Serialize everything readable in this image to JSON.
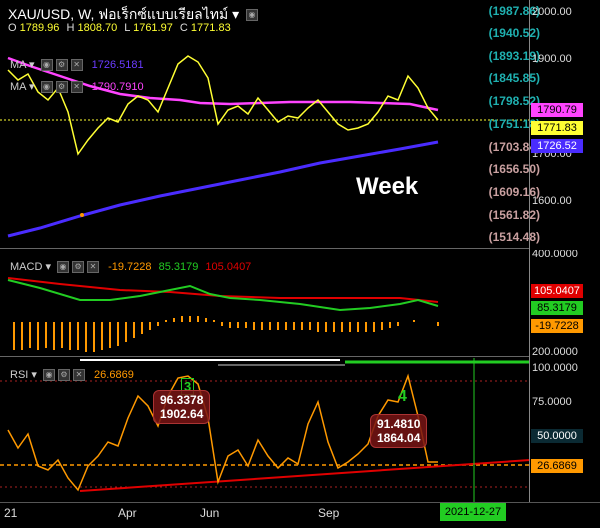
{
  "header": {
    "title": "XAU/USD, W, ฟอเร็กซ์แบบเรียลไทม์ ▾",
    "ohlc": [
      {
        "key": "O",
        "value": "1789.96"
      },
      {
        "key": "H",
        "value": "1808.70"
      },
      {
        "key": "L",
        "value": "1761.97"
      },
      {
        "key": "C",
        "value": "1771.83"
      }
    ],
    "ma1": {
      "label": "MA ▾",
      "value": "1726.5181",
      "color": "#6b3cff"
    },
    "ma2": {
      "label": "MA ▾",
      "value": "1790.7910",
      "color": "#ff44ff"
    }
  },
  "scale_labels": [
    "(1987.86)",
    "(1940.52)",
    "(1893.19)",
    "(1845.85)",
    "(1798.52)",
    "(1751.18)",
    "(1703.84)",
    "(1656.50)",
    "(1609.16)",
    "(1561.82)",
    "(1514.48)"
  ],
  "price_axis": [
    "2000.00",
    "1900.00",
    "1800.00",
    "1700.00",
    "1600.00"
  ],
  "price_tags": [
    {
      "value": "1790.79",
      "bg": "#ff44ff",
      "fg": "#000"
    },
    {
      "value": "1771.83",
      "bg": "#ffff33",
      "fg": "#000"
    },
    {
      "value": "1726.52",
      "bg": "#4a2cff",
      "fg": "#fff"
    }
  ],
  "annotation": "Week",
  "macd": {
    "label": "MACD ▾",
    "values": [
      "-19.7228",
      "85.3179",
      "105.0407"
    ],
    "axis": [
      "400.0000",
      "200.0000"
    ],
    "tags": [
      {
        "value": "105.0407",
        "bg": "#e00000",
        "fg": "#fff"
      },
      {
        "value": "85.3179",
        "bg": "#22cc22",
        "fg": "#000"
      },
      {
        "value": "-19.7228",
        "bg": "#ff9900",
        "fg": "#000"
      }
    ]
  },
  "rsi": {
    "label": "RSI ▾",
    "value": "26.6869",
    "axis": [
      "100.0000",
      "75.0000",
      "50.0000"
    ],
    "tag": {
      "value": "26.6869",
      "bg": "#ff9900",
      "fg": "#000"
    },
    "box1": {
      "num": "3",
      "line1": "96.3378",
      "line2": "1902.64"
    },
    "box2": {
      "num": "4",
      "line1": "91.4810",
      "line2": "1864.04"
    }
  },
  "time_axis": {
    "ticks": [
      "21",
      "Apr",
      "Jun",
      "Sep"
    ],
    "cursor_date": "2021-12-27"
  }
}
